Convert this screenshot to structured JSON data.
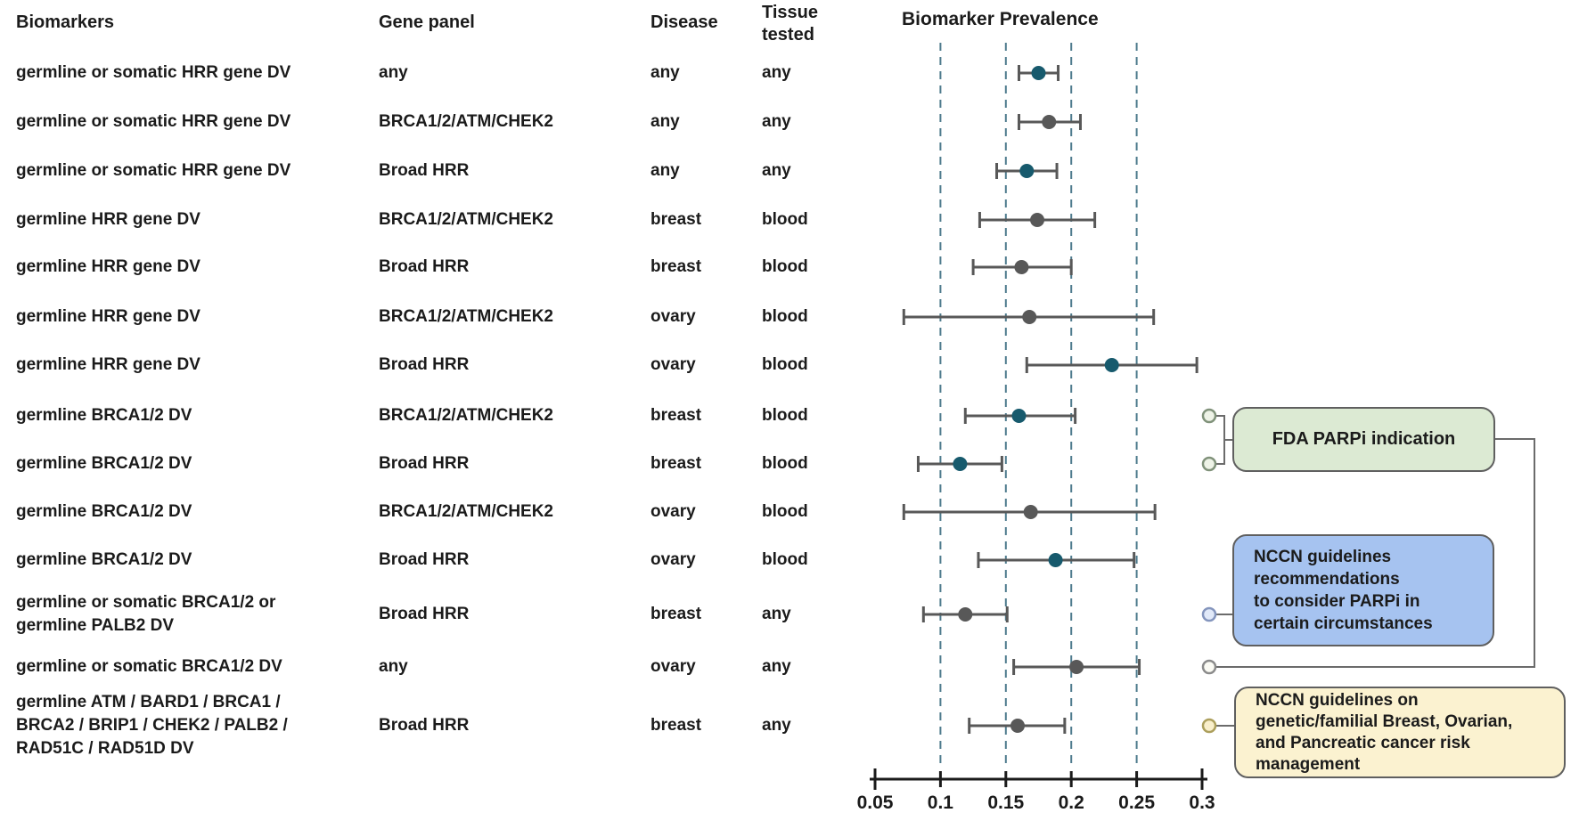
{
  "header": {
    "biomarkers": "Biomarkers",
    "gene_panel": "Gene panel",
    "disease": "Disease",
    "tissue_tested": "Tissue tested",
    "prevalence": "Biomarker Prevalence"
  },
  "rows": [
    {
      "biomarker": "germline or somatic HRR gene DV",
      "gene_panel": "any",
      "disease": "any",
      "tissue": "any"
    },
    {
      "biomarker": "germline or somatic HRR gene DV",
      "gene_panel": "BRCA1/2/ATM/CHEK2",
      "disease": "any",
      "tissue": "any"
    },
    {
      "biomarker": "germline or somatic HRR gene DV",
      "gene_panel": "Broad HRR",
      "disease": "any",
      "tissue": "any"
    },
    {
      "biomarker": "germline HRR gene DV",
      "gene_panel": "BRCA1/2/ATM/CHEK2",
      "disease": "breast",
      "tissue": "blood"
    },
    {
      "biomarker": "germline HRR gene DV",
      "gene_panel": "Broad HRR",
      "disease": "breast",
      "tissue": "blood"
    },
    {
      "biomarker": "germline HRR gene DV",
      "gene_panel": "BRCA1/2/ATM/CHEK2",
      "disease": "ovary",
      "tissue": "blood"
    },
    {
      "biomarker": "germline HRR gene DV",
      "gene_panel": "Broad HRR",
      "disease": "ovary",
      "tissue": "blood"
    },
    {
      "biomarker": "germline BRCA1/2 DV",
      "gene_panel": "BRCA1/2/ATM/CHEK2",
      "disease": "breast",
      "tissue": "blood"
    },
    {
      "biomarker": "germline BRCA1/2 DV",
      "gene_panel": "Broad HRR",
      "disease": "breast",
      "tissue": "blood"
    },
    {
      "biomarker": "germline BRCA1/2 DV",
      "gene_panel": "BRCA1/2/ATM/CHEK2",
      "disease": "ovary",
      "tissue": "blood"
    },
    {
      "biomarker": "germline BRCA1/2 DV",
      "gene_panel": "Broad HRR",
      "disease": "ovary",
      "tissue": "blood"
    },
    {
      "biomarker": "germline or somatic BRCA1/2 or germline PALB2 DV",
      "gene_panel": "Broad HRR",
      "disease": "breast",
      "tissue": "any"
    },
    {
      "biomarker": "germline or somatic BRCA1/2 DV",
      "gene_panel": "any",
      "disease": "ovary",
      "tissue": "any"
    },
    {
      "biomarker": "germline ATM / BARD1 / BRCA1 / BRCA2 / BRIP1 / CHEK2 / PALB2 / RAD51C / RAD51D DV",
      "gene_panel": "Broad HRR",
      "disease": "breast",
      "tissue": "any"
    }
  ],
  "chart_data": {
    "type": "scatter",
    "subtype": "forest-plot-with-error-bars",
    "title": "Biomarker Prevalence",
    "xlabel": "Biomarker Prevalence",
    "xlim": [
      0.05,
      0.3
    ],
    "x_ticks": [
      0.05,
      0.1,
      0.15,
      0.2,
      0.25,
      0.3
    ],
    "x_tick_labels": [
      "0.05",
      "0.1",
      "0.15",
      "0.2",
      "0.25",
      "0.3"
    ],
    "gridlines": [
      0.1,
      0.15,
      0.2,
      0.25
    ],
    "grid_style": "dashed",
    "points": [
      {
        "label": "germline or somatic HRR gene DV | any | any | any",
        "value": 0.175,
        "ci_low": 0.16,
        "ci_high": 0.19,
        "color": "teal",
        "callout": null
      },
      {
        "label": "germline or somatic HRR gene DV | BRCA1/2/ATM/CHEK2 | any | any",
        "value": 0.183,
        "ci_low": 0.16,
        "ci_high": 0.207,
        "color": "gray",
        "callout": null
      },
      {
        "label": "germline or somatic HRR gene DV | Broad HRR | any | any",
        "value": 0.166,
        "ci_low": 0.143,
        "ci_high": 0.189,
        "color": "teal",
        "callout": null
      },
      {
        "label": "germline HRR gene DV | BRCA1/2/ATM/CHEK2 | breast | blood",
        "value": 0.174,
        "ci_low": 0.13,
        "ci_high": 0.218,
        "color": "gray",
        "callout": null
      },
      {
        "label": "germline HRR gene DV | Broad HRR | breast | blood",
        "value": 0.162,
        "ci_low": 0.125,
        "ci_high": 0.2,
        "color": "gray",
        "callout": null
      },
      {
        "label": "germline HRR gene DV | BRCA1/2/ATM/CHEK2 | ovary | blood",
        "value": 0.168,
        "ci_low": 0.072,
        "ci_high": 0.263,
        "color": "gray",
        "callout": null
      },
      {
        "label": "germline HRR gene DV | Broad HRR | ovary | blood",
        "value": 0.231,
        "ci_low": 0.166,
        "ci_high": 0.296,
        "color": "teal",
        "callout": null
      },
      {
        "label": "germline BRCA1/2 DV | BRCA1/2/ATM/CHEK2 | breast | blood",
        "value": 0.16,
        "ci_low": 0.119,
        "ci_high": 0.203,
        "color": "teal",
        "callout": "fda"
      },
      {
        "label": "germline BRCA1/2 DV | Broad HRR | breast | blood",
        "value": 0.115,
        "ci_low": 0.083,
        "ci_high": 0.147,
        "color": "teal",
        "callout": "fda"
      },
      {
        "label": "germline BRCA1/2 DV | BRCA1/2/ATM/CHEK2 | ovary | blood",
        "value": 0.169,
        "ci_low": 0.072,
        "ci_high": 0.264,
        "color": "gray",
        "callout": null
      },
      {
        "label": "germline BRCA1/2 DV | Broad HRR | ovary | blood",
        "value": 0.188,
        "ci_low": 0.129,
        "ci_high": 0.248,
        "color": "teal",
        "callout": null
      },
      {
        "label": "germline or somatic BRCA1/2 or germline PALB2 DV | Broad HRR | breast | any",
        "value": 0.119,
        "ci_low": 0.087,
        "ci_high": 0.151,
        "color": "gray",
        "callout": "nccn_parpi"
      },
      {
        "label": "germline or somatic BRCA1/2 DV | any | ovary | any",
        "value": 0.204,
        "ci_low": 0.156,
        "ci_high": 0.252,
        "color": "gray",
        "callout": "fda_far"
      },
      {
        "label": "germline ATM/BARD1/BRCA1/BRCA2/BRIP1/CHEK2/PALB2/RAD51C/RAD51D DV | Broad HRR | breast | any",
        "value": 0.159,
        "ci_low": 0.122,
        "ci_high": 0.195,
        "color": "gray",
        "callout": "nccn_risk"
      }
    ],
    "legend": "none"
  },
  "callouts": {
    "fda": {
      "label": "FDA PARPi indication",
      "fill": "#dcead3"
    },
    "nccn_parpi": {
      "fill": "#a6c3f0",
      "lines": [
        "NCCN guidelines",
        "recommendations",
        "to consider PARPi in",
        "certain circumstances"
      ]
    },
    "nccn_risk": {
      "fill": "#fbf2d0",
      "lines": [
        "NCCN guidelines on",
        "genetic/familial Breast, Ovarian,",
        "and Pancreatic cancer risk",
        "management"
      ]
    }
  },
  "colors": {
    "band": "#cfe2f3",
    "teal_dot": "#175a6d",
    "gray_dot": "#585858",
    "ci": "#585858",
    "grid": "#4e7b8d",
    "axis": "#1a1a1a",
    "connector": "#6b6b6b",
    "circle_fda_fill": "#eef3e7",
    "circle_fda_stroke": "#80927a",
    "circle_parpi_fill": "#e1e9f8",
    "circle_parpi_stroke": "#8495bd",
    "circle_far_fill": "#fbfbf4",
    "circle_far_stroke": "#8b8b8b",
    "circle_risk_fill": "#f9efcb",
    "circle_risk_stroke": "#ac9f5c"
  }
}
